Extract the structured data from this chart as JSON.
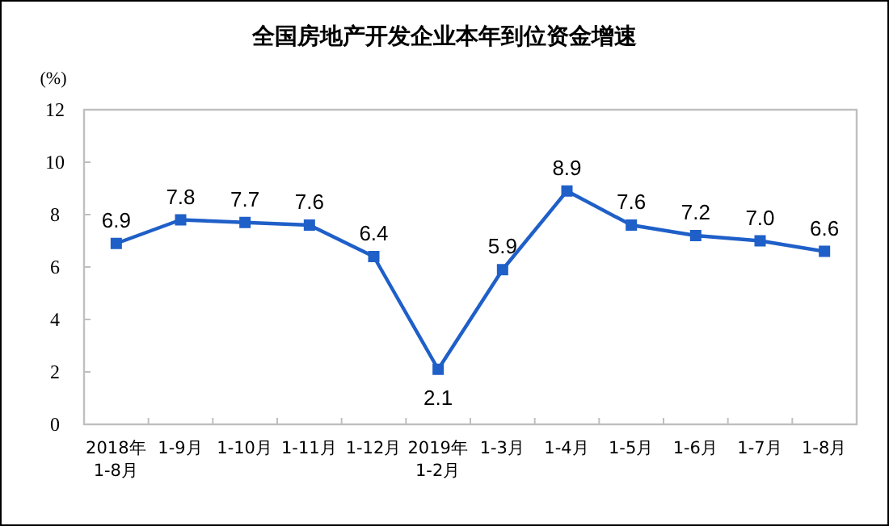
{
  "chart_data": {
    "type": "line",
    "title": "全国房地产开发企业本年到位资金增速",
    "ylabel": "(%)",
    "categories": [
      "2018年 1-8月",
      "1-9月",
      "1-10月",
      "1-11月",
      "1-12月",
      "2019年 1-2月",
      "1-3月",
      "1-4月",
      "1-5月",
      "1-6月",
      "1-7月",
      "1-8月"
    ],
    "series": [
      {
        "color": "#1f5fc8",
        "values": [
          6.9,
          7.8,
          7.7,
          7.6,
          6.4,
          2.1,
          5.9,
          8.9,
          7.6,
          7.2,
          7.0,
          6.6
        ],
        "value_labels": [
          "6.9",
          "7.8",
          "7.7",
          "7.6",
          "6.4",
          "2.1",
          "5.9",
          "8.9",
          "7.6",
          "7.2",
          "7.0",
          "6.6"
        ]
      }
    ],
    "ylim": [
      0,
      12
    ],
    "yticks": [
      0,
      2,
      4,
      6,
      8,
      10,
      12
    ],
    "marker": "square",
    "line_style": "solid"
  }
}
